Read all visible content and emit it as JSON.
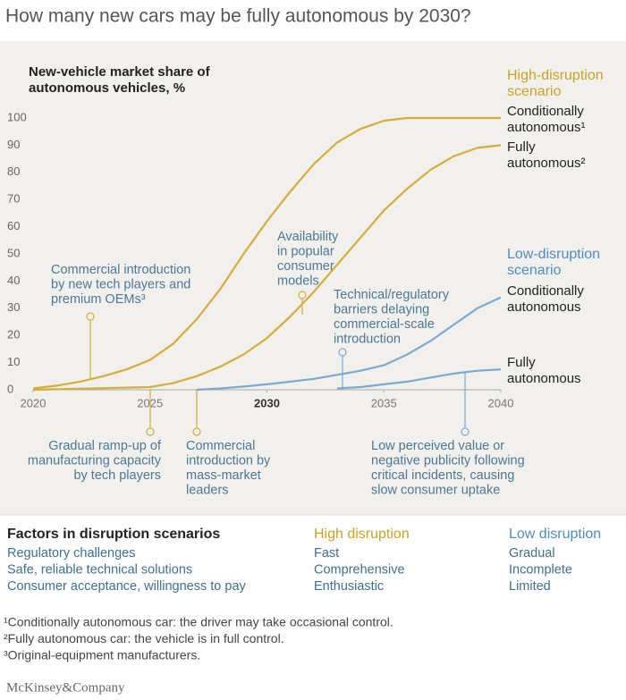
{
  "chart_data": {
    "type": "line",
    "title": "How many new cars may be fully autonomous by 2030?",
    "y_label": "New-vehicle market share of autonomous vehicles, %",
    "x": [
      2020,
      2021,
      2022,
      2023,
      2024,
      2025,
      2026,
      2027,
      2028,
      2029,
      2030,
      2031,
      2032,
      2033,
      2034,
      2035,
      2036,
      2037,
      2038,
      2039,
      2040
    ],
    "xlim": [
      2020,
      2040
    ],
    "xticks": [
      2020,
      2025,
      2030,
      2035,
      2040
    ],
    "bold_xticks": [
      2030
    ],
    "ylim": [
      0,
      100
    ],
    "yticks": [
      0,
      10,
      20,
      30,
      40,
      50,
      60,
      70,
      80,
      90,
      100
    ],
    "scenarios": [
      {
        "name": "High-disruption scenario",
        "color": "#c9a227"
      },
      {
        "name": "Low-disruption scenario",
        "color": "#4f8cbf"
      }
    ],
    "series": [
      {
        "name": "Conditionally autonomous¹",
        "scenario": 0,
        "color": "#d4ad3a",
        "values": [
          0.5,
          1.5,
          3,
          5,
          7.5,
          11,
          17,
          26,
          37,
          50,
          62,
          73,
          83,
          91,
          96,
          99,
          100,
          100,
          100,
          100,
          100
        ]
      },
      {
        "name": "Fully autonomous²",
        "scenario": 0,
        "color": "#d4ad3a",
        "values": [
          0,
          0.2,
          0.4,
          0.6,
          0.8,
          1,
          2.5,
          5,
          8.5,
          13,
          19,
          27,
          36,
          46,
          56,
          66,
          74,
          81,
          86,
          89,
          90
        ]
      },
      {
        "name": "Conditionally autonomous",
        "scenario": 1,
        "color": "#7aaad2",
        "values": [
          null,
          null,
          null,
          null,
          null,
          null,
          null,
          0,
          0.5,
          1.2,
          2,
          3,
          4,
          5.5,
          7,
          9,
          13,
          18,
          24,
          30,
          34
        ]
      },
      {
        "name": "Fully autonomous",
        "scenario": 1,
        "color": "#7aaad2",
        "values": [
          null,
          null,
          null,
          null,
          null,
          null,
          null,
          null,
          null,
          null,
          null,
          null,
          null,
          0.5,
          1,
          2,
          3,
          4.5,
          6,
          7,
          7.5
        ]
      }
    ],
    "annotations": [
      [
        "Commercial introduction",
        "by new tech players and",
        "premium OEMs³"
      ],
      [
        "Availability",
        "in popular",
        "consumer",
        "models"
      ],
      [
        "Technical/regulatory",
        "barriers delaying",
        "commercial-scale",
        "introduction"
      ],
      [
        "Gradual ramp-up of",
        "manufacturing capacity",
        "by tech players"
      ],
      [
        "Commercial",
        "introduction by",
        "mass-market",
        "leaders"
      ],
      [
        "Low perceived value or",
        "negative publicity following",
        "critical incidents, causing",
        "slow consumer uptake"
      ]
    ]
  },
  "factors": {
    "header": [
      "Factors in disruption scenarios",
      "High disruption",
      "Low disruption"
    ],
    "rows": [
      [
        "Regulatory challenges",
        "Fast",
        "Gradual"
      ],
      [
        "Safe, reliable technical solutions",
        "Comprehensive",
        "Incomplete"
      ],
      [
        "Consumer acceptance, willingness to pay",
        "Enthusiastic",
        "Limited"
      ]
    ]
  },
  "footnotes": [
    "¹Conditionally autonomous car: the driver may take occasional control.",
    "²Fully autonomous car: the vehicle is in full control.",
    "³Original-equipment manufacturers."
  ],
  "brand": "McKinsey&Company"
}
